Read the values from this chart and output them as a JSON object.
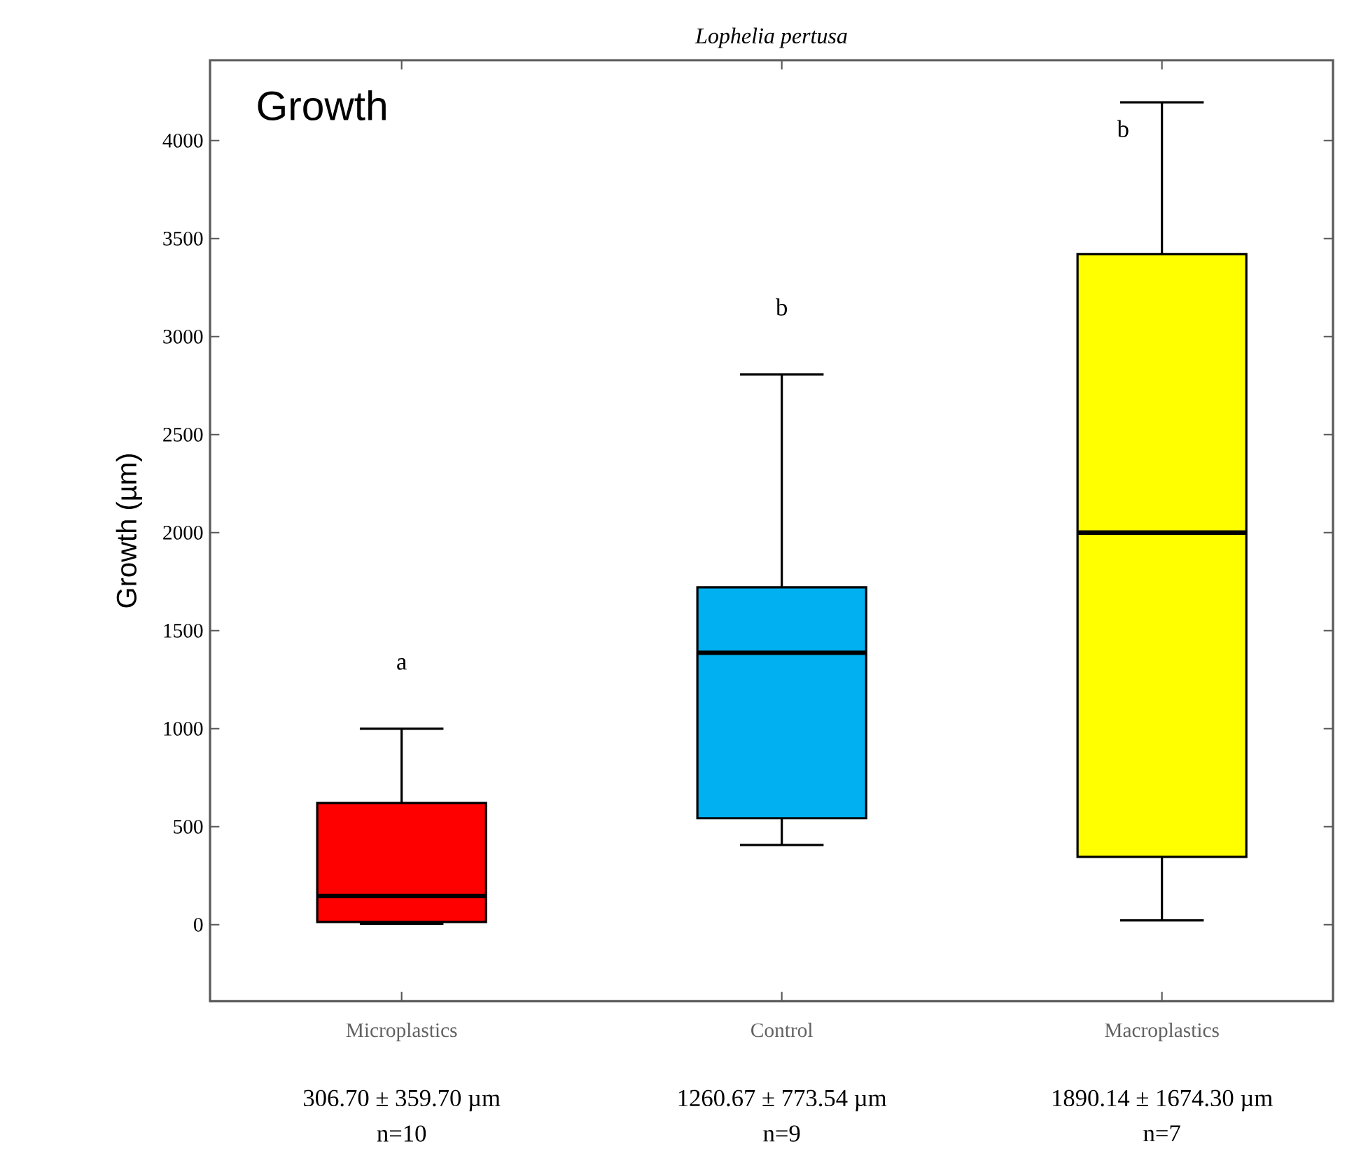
{
  "chart_data": {
    "type": "box",
    "title": "Lophelia pertusa",
    "ylabel": "Growth (µm)",
    "categories": [
      "Microplastics",
      "Control",
      "Macroplastics"
    ],
    "boxes": [
      {
        "low": 5,
        "q1": 14,
        "median": 146,
        "q3": 621,
        "high": 1000
      },
      {
        "low": 407,
        "q1": 543,
        "median": 1387,
        "q3": 1721,
        "high": 2807
      },
      {
        "low": 22,
        "q1": 346,
        "median": 2000,
        "q3": 3421,
        "high": 4195
      }
    ],
    "colors": [
      "#ff0000",
      "#00b0f0",
      "#ffff00"
    ],
    "ylim": [
      -390,
      4410
    ],
    "yticks": [
      0,
      500,
      1000,
      1500,
      2000,
      2500,
      3000,
      3500,
      4000
    ],
    "grid": false,
    "annotations": [
      "Growth",
      "a",
      "b",
      "b",
      "306.70 ± 359.70 µm",
      "n=10",
      "1260.67 ± 773.54 µm",
      "n=9",
      "1890.14 ± 1674.30 µm",
      "n=7"
    ]
  }
}
